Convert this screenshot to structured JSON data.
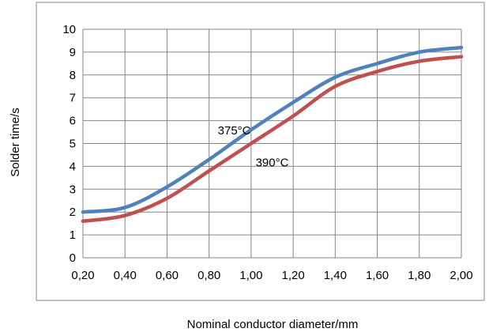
{
  "chart_data": {
    "type": "line",
    "title": "",
    "xlabel": "Nominal conductor diameter/mm",
    "ylabel": "Solder time/s",
    "xlim": [
      0.2,
      2.0
    ],
    "ylim": [
      0,
      10
    ],
    "x_ticks": [
      "0,20",
      "0,40",
      "0,60",
      "0,80",
      "1,00",
      "1,20",
      "1,40",
      "1,60",
      "1,80",
      "2,00"
    ],
    "y_ticks": [
      "0",
      "1",
      "2",
      "3",
      "4",
      "5",
      "6",
      "7",
      "8",
      "9",
      "10"
    ],
    "grid": true,
    "legend": "none",
    "x": [
      0.2,
      0.4,
      0.6,
      0.8,
      1.0,
      1.2,
      1.4,
      1.6,
      1.8,
      2.0
    ],
    "series": [
      {
        "name": "375°C",
        "color": "#4f81bd",
        "values": [
          2.0,
          2.2,
          3.1,
          4.3,
          5.6,
          6.8,
          7.9,
          8.5,
          9.0,
          9.2
        ]
      },
      {
        "name": "390°C",
        "color": "#c0504d",
        "values": [
          1.6,
          1.85,
          2.6,
          3.8,
          5.0,
          6.2,
          7.5,
          8.15,
          8.6,
          8.8
        ]
      }
    ],
    "annotations": [
      {
        "text": "375°C",
        "series": 0,
        "x": 0.92,
        "y": 5.4
      },
      {
        "text": "390°C",
        "series": 1,
        "x": 1.1,
        "y": 4.0
      }
    ]
  }
}
